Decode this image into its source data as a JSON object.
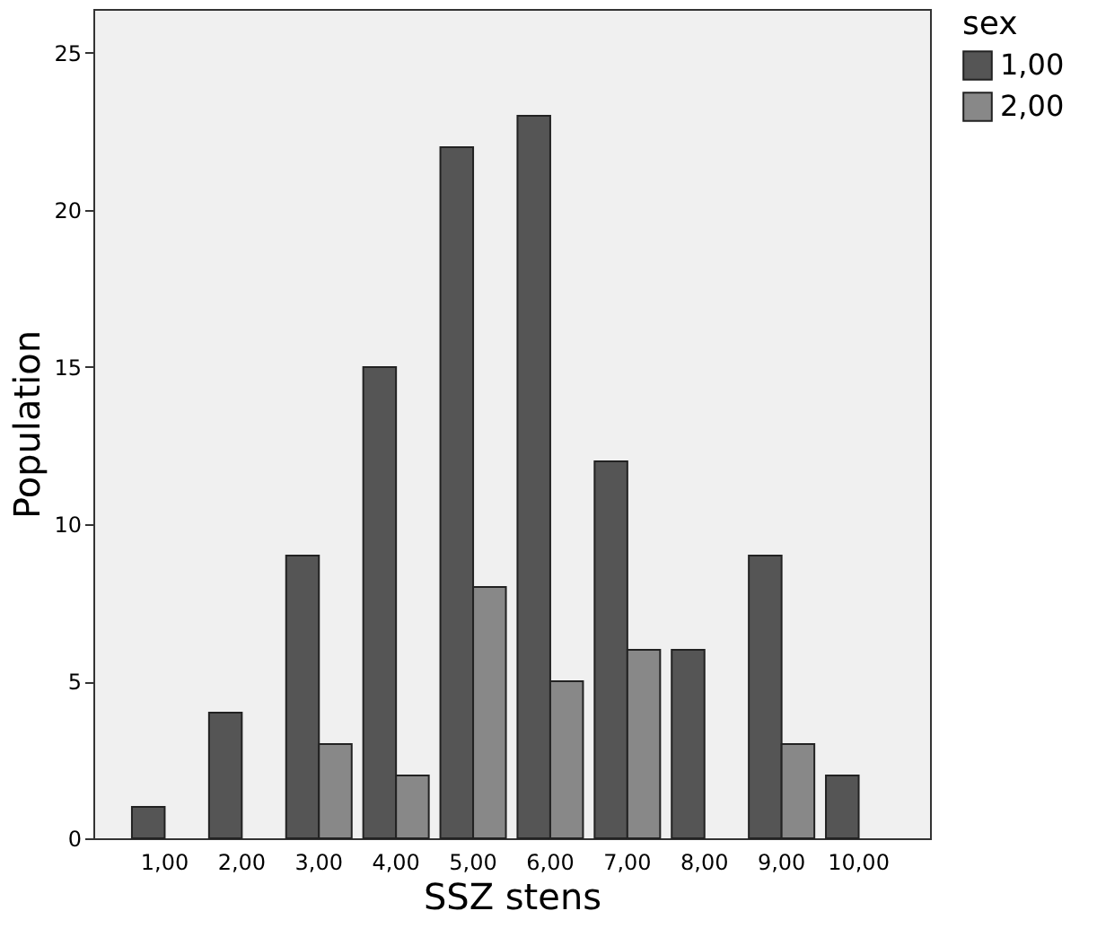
{
  "chart_data": {
    "type": "bar",
    "xlabel": "SSZ stens",
    "ylabel": "Population",
    "legend_title": "sex",
    "categories": [
      "1,00",
      "2,00",
      "3,00",
      "4,00",
      "5,00",
      "6,00",
      "7,00",
      "8,00",
      "9,00",
      "10,00"
    ],
    "series": [
      {
        "name": "1,00",
        "color": "#555555",
        "values": [
          1,
          4,
          9,
          15,
          22,
          23,
          12,
          6,
          9,
          2
        ]
      },
      {
        "name": "2,00",
        "color": "#888888",
        "values": [
          null,
          null,
          3,
          2,
          8,
          5,
          6,
          null,
          3,
          null
        ]
      }
    ],
    "ylim": [
      0,
      26.4
    ],
    "yticks": [
      0,
      5,
      10,
      15,
      20,
      25
    ],
    "grid": false,
    "legend": "right"
  }
}
